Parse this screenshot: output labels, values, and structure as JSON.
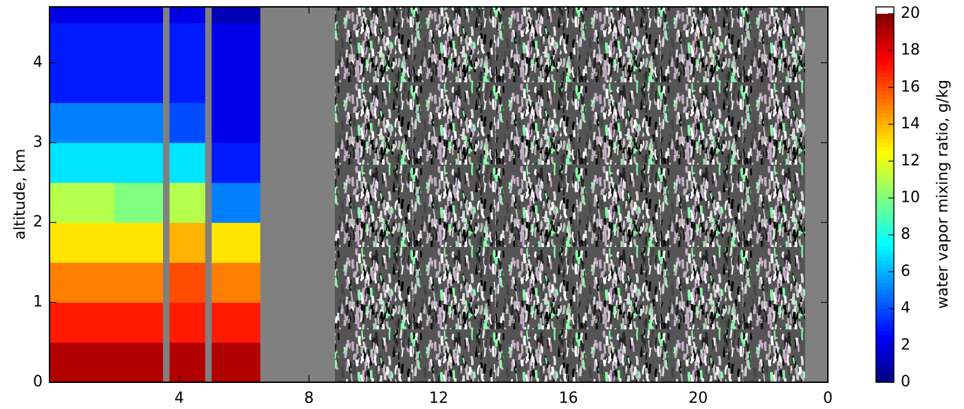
{
  "chart_data": {
    "type": "heatmap",
    "xlabel": null,
    "ylabel": "altitude, km",
    "colorbar_label": "water vapor mixing ratio, g/kg",
    "x": [
      0,
      2,
      3.5,
      3.7,
      4.8,
      5.0,
      6.5,
      8.8,
      23.3,
      24
    ],
    "y": [
      0,
      0.5,
      1,
      1.5,
      2,
      2.5,
      3,
      3.5,
      4,
      4.5,
      4.7
    ],
    "z": [
      [
        19,
        17,
        15,
        13,
        11,
        7,
        5,
        3,
        3,
        2
      ],
      [
        19,
        17,
        15,
        13,
        10,
        7,
        5,
        3,
        3,
        2
      ],
      [
        null,
        null,
        null,
        null,
        null,
        null,
        null,
        null,
        null,
        null
      ],
      [
        19,
        17,
        16,
        14,
        11,
        7,
        4,
        3,
        3,
        2
      ],
      [
        null,
        null,
        null,
        null,
        null,
        null,
        null,
        null,
        null,
        null
      ],
      [
        19,
        17,
        15,
        13,
        5,
        3,
        2,
        2,
        2,
        1
      ],
      [
        null,
        null,
        null,
        null,
        null,
        null,
        null,
        null,
        null,
        null
      ],
      [
        null,
        null,
        null,
        null,
        null,
        null,
        null,
        null,
        null,
        null
      ],
      [
        null,
        null,
        null,
        null,
        null,
        null,
        null,
        null,
        null,
        null
      ]
    ],
    "missing_color": "#808080",
    "xlim": [
      0,
      24
    ],
    "xticks": [
      4,
      8,
      12,
      16,
      20,
      {
        "value": 24,
        "label": "0"
      }
    ],
    "ylim": [
      0,
      4.7
    ],
    "yticks": [
      0,
      1,
      2,
      3,
      4
    ],
    "clim": [
      0,
      20
    ],
    "cticks": [
      0,
      2,
      4,
      6,
      8,
      10,
      12,
      14,
      16,
      18,
      20
    ],
    "colormap": "jet"
  }
}
